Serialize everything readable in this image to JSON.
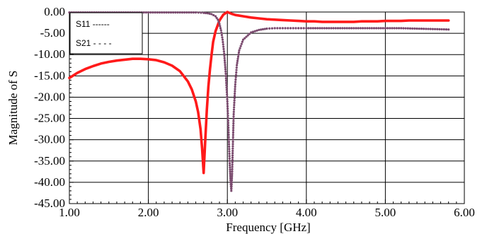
{
  "chart_data": {
    "type": "line",
    "title": "",
    "xlabel": "Frequency [GHz]",
    "ylabel": "Magnitude of S",
    "xlim": [
      1.0,
      6.0
    ],
    "ylim": [
      -45.0,
      0.0
    ],
    "x_ticks": [
      "1.00",
      "2.00",
      "3.00",
      "4.00",
      "5.00",
      "6.00"
    ],
    "y_ticks": [
      "0.00",
      "-5.00",
      "-10.00",
      "-15.00",
      "-20.00",
      "-25.00",
      "-30.00",
      "-35.00",
      "-40.00",
      "-45.00"
    ],
    "grid": true,
    "legend": {
      "placement": "top-left",
      "entries": [
        "S11 ------",
        "S21 - - - -"
      ]
    },
    "series": [
      {
        "name": "S11",
        "color": "#ff1a1a",
        "style": "solid-thick",
        "x": [
          1.0,
          1.1,
          1.2,
          1.3,
          1.4,
          1.5,
          1.6,
          1.7,
          1.8,
          1.9,
          2.0,
          2.1,
          2.2,
          2.3,
          2.4,
          2.5,
          2.55,
          2.6,
          2.63,
          2.66,
          2.68,
          2.7,
          2.72,
          2.74,
          2.76,
          2.78,
          2.8,
          2.82,
          2.85,
          2.9,
          2.95,
          3.0,
          3.05,
          3.1,
          3.2,
          3.3,
          3.4,
          3.5,
          3.6,
          3.7,
          3.8,
          3.9,
          4.0,
          4.1,
          4.2,
          4.3,
          4.4,
          4.5,
          4.6,
          4.7,
          4.8,
          4.9,
          5.0,
          5.1,
          5.2,
          5.3,
          5.4,
          5.5,
          5.6,
          5.7,
          5.8
        ],
        "y": [
          -15.5,
          -14.3,
          -13.4,
          -12.7,
          -12.1,
          -11.7,
          -11.4,
          -11.2,
          -11.0,
          -11.0,
          -11.1,
          -11.3,
          -11.8,
          -12.6,
          -13.9,
          -16.3,
          -18.2,
          -21.0,
          -23.5,
          -27.5,
          -32.0,
          -37.8,
          -30.0,
          -23.0,
          -17.5,
          -13.5,
          -10.0,
          -7.0,
          -4.5,
          -2.0,
          -0.6,
          0.0,
          -0.4,
          -0.7,
          -1.0,
          -1.3,
          -1.5,
          -1.7,
          -1.8,
          -1.9,
          -2.0,
          -2.1,
          -2.2,
          -2.2,
          -2.3,
          -2.3,
          -2.3,
          -2.3,
          -2.3,
          -2.2,
          -2.2,
          -2.2,
          -2.1,
          -2.1,
          -2.1,
          -2.0,
          -2.0,
          -2.0,
          -2.0,
          -2.0,
          -2.0
        ]
      },
      {
        "name": "S21",
        "color": "#7a4a6e",
        "style": "dotted",
        "x": [
          1.0,
          1.2,
          1.4,
          1.6,
          1.8,
          2.0,
          2.2,
          2.4,
          2.6,
          2.7,
          2.75,
          2.8,
          2.85,
          2.88,
          2.9,
          2.92,
          2.94,
          2.96,
          2.98,
          3.0,
          3.01,
          3.02,
          3.03,
          3.04,
          3.05,
          3.06,
          3.07,
          3.08,
          3.1,
          3.12,
          3.15,
          3.2,
          3.3,
          3.4,
          3.5,
          3.6,
          3.7,
          3.8,
          3.9,
          4.0,
          4.2,
          4.4,
          4.6,
          4.8,
          5.0,
          5.2,
          5.4,
          5.6,
          5.8
        ],
        "y": [
          -0.1,
          -0.1,
          -0.1,
          -0.1,
          -0.1,
          -0.1,
          -0.1,
          -0.1,
          -0.1,
          -0.2,
          -0.3,
          -0.5,
          -1.0,
          -1.8,
          -2.8,
          -4.3,
          -6.5,
          -9.8,
          -14.5,
          -21.0,
          -25.5,
          -30.5,
          -35.5,
          -39.5,
          -42.0,
          -38.0,
          -31.0,
          -24.0,
          -17.0,
          -12.5,
          -9.0,
          -6.5,
          -4.8,
          -4.2,
          -3.9,
          -3.8,
          -3.8,
          -3.8,
          -3.8,
          -3.8,
          -3.8,
          -3.8,
          -3.8,
          -3.8,
          -3.8,
          -3.8,
          -3.9,
          -4.0,
          -4.1
        ]
      }
    ]
  }
}
